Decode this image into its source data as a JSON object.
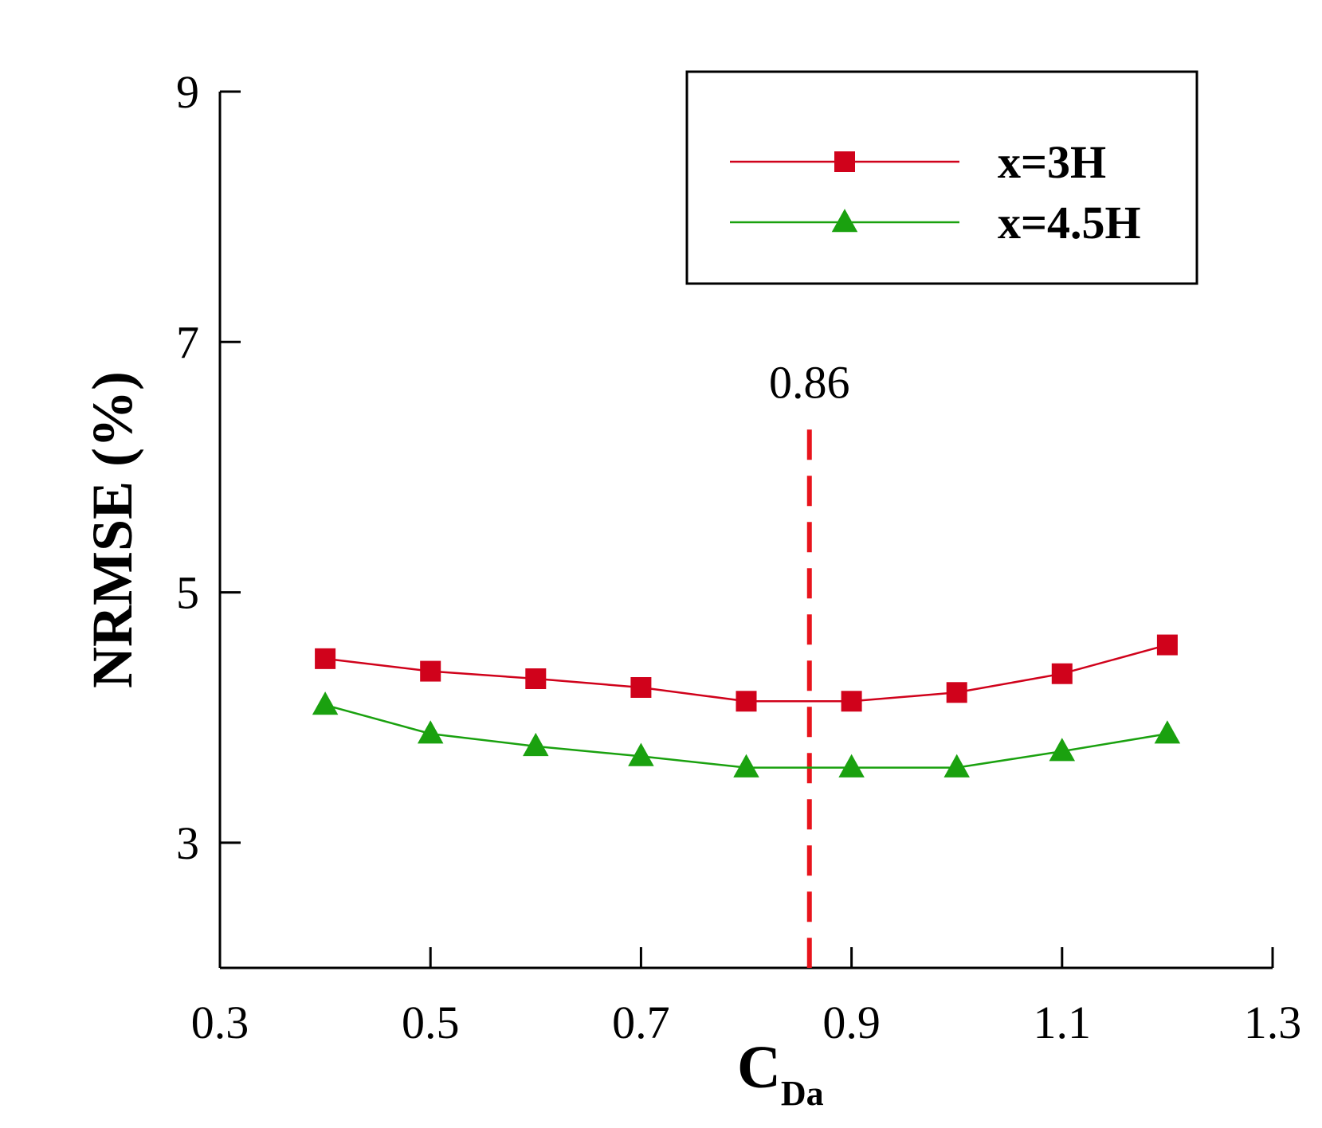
{
  "chart_data": {
    "type": "line",
    "xlabel": "C",
    "xlabel_sub": "Da",
    "ylabel": "NRMSE (%)",
    "xlim": [
      0.3,
      1.3
    ],
    "ylim": [
      2,
      9
    ],
    "xticks": [
      0.3,
      0.5,
      0.7,
      0.9,
      1.1,
      1.3
    ],
    "xtick_labels": [
      "0.3",
      "0.5",
      "0.7",
      "0.9",
      "1.1",
      "1.3"
    ],
    "yticks": [
      3,
      5,
      7,
      9
    ],
    "ytick_labels": [
      "3",
      "5",
      "7",
      "9"
    ],
    "x": [
      0.4,
      0.5,
      0.6,
      0.7,
      0.8,
      0.9,
      1.0,
      1.1,
      1.2
    ],
    "series": [
      {
        "name": "x=3H",
        "color": "#d0021b",
        "marker": "square",
        "values": [
          4.47,
          4.37,
          4.31,
          4.24,
          4.13,
          4.13,
          4.2,
          4.35,
          4.58
        ]
      },
      {
        "name": "x=4.5H",
        "color": "#1aa10f",
        "marker": "triangle",
        "values": [
          4.1,
          3.87,
          3.77,
          3.69,
          3.6,
          3.6,
          3.6,
          3.73,
          3.87
        ]
      }
    ],
    "annotations": [
      {
        "type": "vline",
        "x": 0.86,
        "y_top": 6.3,
        "label": "0.86",
        "color": "#e8141c",
        "style": "dashed"
      }
    ],
    "legend_position": "top-right",
    "grid": false
  }
}
